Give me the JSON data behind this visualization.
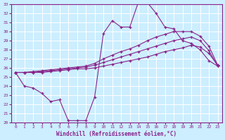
{
  "xlabel": "Windchill (Refroidissement éolien,°C)",
  "ylabel": "",
  "background_color": "#cceeff",
  "line_color": "#882288",
  "grid_color": "#ffffff",
  "xlim": [
    -0.5,
    23.5
  ],
  "ylim": [
    20,
    33
  ],
  "xticks": [
    0,
    1,
    2,
    3,
    4,
    5,
    6,
    7,
    8,
    9,
    10,
    11,
    12,
    13,
    14,
    15,
    16,
    17,
    18,
    19,
    20,
    21,
    22,
    23
  ],
  "yticks": [
    20,
    21,
    22,
    23,
    24,
    25,
    26,
    27,
    28,
    29,
    30,
    31,
    32,
    33
  ],
  "x": [
    0,
    1,
    2,
    3,
    4,
    5,
    6,
    7,
    8,
    9,
    10,
    11,
    12,
    13,
    14,
    15,
    16,
    17,
    18,
    19,
    20,
    21,
    22,
    23
  ],
  "line1": [
    25.5,
    24.0,
    23.8,
    23.2,
    22.3,
    22.5,
    20.2,
    20.2,
    20.2,
    22.8,
    29.8,
    31.2,
    30.5,
    30.5,
    33.3,
    33.2,
    32.0,
    30.5,
    30.3,
    29.0,
    28.7,
    28.0,
    26.8,
    26.2
  ],
  "line2": [
    25.5,
    25.5,
    25.6,
    25.7,
    25.8,
    25.9,
    26.0,
    26.1,
    26.2,
    26.5,
    27.0,
    27.4,
    27.8,
    28.1,
    28.5,
    29.0,
    29.4,
    29.7,
    30.0,
    30.0,
    30.0,
    29.5,
    28.4,
    26.3
  ],
  "line3": [
    25.5,
    25.5,
    25.5,
    25.6,
    25.7,
    25.8,
    25.9,
    26.0,
    26.1,
    26.3,
    26.6,
    26.9,
    27.2,
    27.5,
    27.8,
    28.1,
    28.4,
    28.7,
    29.0,
    29.2,
    29.4,
    29.0,
    27.9,
    26.2
  ],
  "line4": [
    25.5,
    25.5,
    25.5,
    25.5,
    25.6,
    25.7,
    25.8,
    25.9,
    25.9,
    26.0,
    26.2,
    26.4,
    26.6,
    26.8,
    27.0,
    27.2,
    27.5,
    27.8,
    28.0,
    28.2,
    28.5,
    28.3,
    27.6,
    26.3
  ]
}
